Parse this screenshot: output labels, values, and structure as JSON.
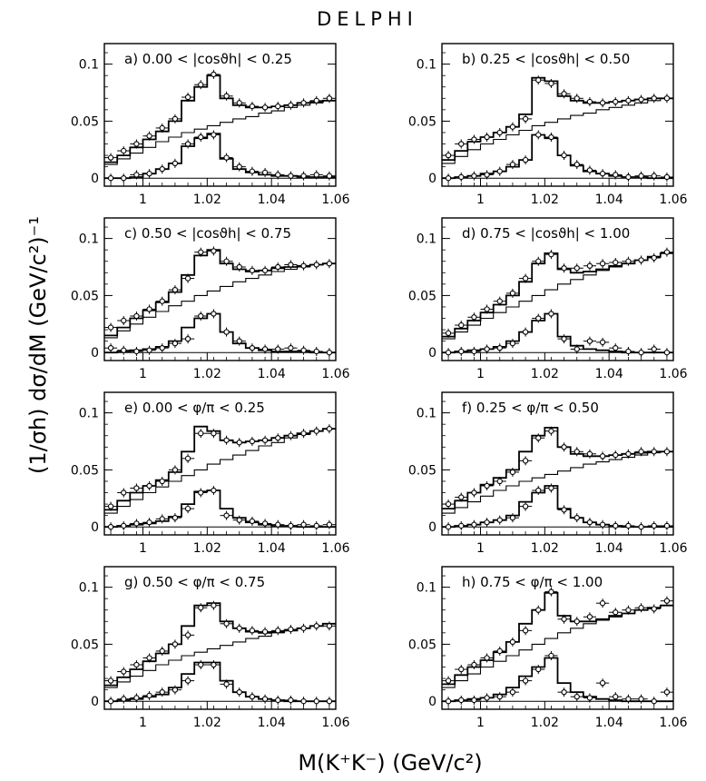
{
  "figure": {
    "title": "DELPHI",
    "ylabel": "(1/σh) dσ/dM  (GeV/c²)⁻¹",
    "xlabel": "M(K⁺K⁻)    (GeV/c²)"
  },
  "chart_data": [
    {
      "type": "line",
      "panel": "a",
      "label": "a) 0.00 < |cosϑh| < 0.25",
      "xlim": [
        0.988,
        1.06
      ],
      "ylim": [
        -0.007,
        0.118
      ],
      "xticks": [
        "1",
        "1.02",
        "1.04",
        "1.06"
      ],
      "yticks": [
        "0",
        "0.05",
        "0.1"
      ],
      "x": [
        0.99,
        0.994,
        0.998,
        1.002,
        1.006,
        1.01,
        1.014,
        1.018,
        1.022,
        1.026,
        1.03,
        1.034,
        1.038,
        1.042,
        1.046,
        1.05,
        1.054,
        1.058
      ],
      "data_total": [
        0.018,
        0.024,
        0.03,
        0.037,
        0.044,
        0.052,
        0.071,
        0.082,
        0.091,
        0.072,
        0.066,
        0.063,
        0.062,
        0.063,
        0.064,
        0.066,
        0.068,
        0.07
      ],
      "model_total": [
        0.014,
        0.02,
        0.027,
        0.034,
        0.041,
        0.05,
        0.068,
        0.08,
        0.09,
        0.07,
        0.064,
        0.062,
        0.062,
        0.063,
        0.064,
        0.066,
        0.067,
        0.068
      ],
      "background": [
        0.012,
        0.017,
        0.022,
        0.027,
        0.032,
        0.036,
        0.04,
        0.043,
        0.046,
        0.049,
        0.052,
        0.054,
        0.057,
        0.059,
        0.062,
        0.064,
        0.066,
        0.068
      ],
      "data_signal": [
        0.0,
        0.0,
        0.003,
        0.004,
        0.008,
        0.013,
        0.03,
        0.036,
        0.038,
        0.018,
        0.01,
        0.006,
        0.005,
        0.003,
        0.002,
        0.002,
        0.003,
        0.002
      ],
      "model_signal": [
        0.0,
        0.0,
        0.001,
        0.004,
        0.008,
        0.013,
        0.028,
        0.035,
        0.039,
        0.017,
        0.008,
        0.005,
        0.003,
        0.002,
        0.002,
        0.001,
        0.001,
        0.001
      ]
    },
    {
      "type": "line",
      "panel": "b",
      "label": "b) 0.25 < |cosϑh| < 0.50",
      "xlim": [
        0.988,
        1.06
      ],
      "ylim": [
        -0.007,
        0.118
      ],
      "xticks": [
        "1",
        "1.02",
        "1.04",
        "1.06"
      ],
      "yticks": [
        "0",
        "0.05",
        "0.1"
      ],
      "x": [
        0.99,
        0.994,
        0.998,
        1.002,
        1.006,
        1.01,
        1.014,
        1.018,
        1.022,
        1.026,
        1.03,
        1.034,
        1.038,
        1.042,
        1.046,
        1.05,
        1.054,
        1.058
      ],
      "data_total": [
        0.02,
        0.03,
        0.034,
        0.036,
        0.04,
        0.045,
        0.052,
        0.086,
        0.083,
        0.074,
        0.07,
        0.067,
        0.066,
        0.067,
        0.068,
        0.069,
        0.07,
        0.07
      ],
      "model_total": [
        0.016,
        0.024,
        0.032,
        0.036,
        0.04,
        0.045,
        0.056,
        0.088,
        0.085,
        0.072,
        0.068,
        0.066,
        0.066,
        0.067,
        0.068,
        0.069,
        0.07,
        0.07
      ],
      "background": [
        0.013,
        0.019,
        0.025,
        0.03,
        0.034,
        0.038,
        0.042,
        0.046,
        0.049,
        0.052,
        0.055,
        0.057,
        0.06,
        0.062,
        0.064,
        0.066,
        0.068,
        0.07
      ],
      "data_signal": [
        0.0,
        0.001,
        0.002,
        0.003,
        0.006,
        0.012,
        0.016,
        0.038,
        0.036,
        0.02,
        0.012,
        0.007,
        0.004,
        0.003,
        0.001,
        0.002,
        0.002,
        0.001
      ],
      "model_signal": [
        0.0,
        0.001,
        0.002,
        0.004,
        0.006,
        0.01,
        0.016,
        0.038,
        0.035,
        0.02,
        0.011,
        0.006,
        0.004,
        0.002,
        0.001,
        0.001,
        0.0,
        0.0
      ]
    },
    {
      "type": "line",
      "panel": "c",
      "label": "c) 0.50 < |cosϑh| < 0.75",
      "xlim": [
        0.988,
        1.06
      ],
      "ylim": [
        -0.007,
        0.118
      ],
      "xticks": [
        "1",
        "1.02",
        "1.04",
        "1.06"
      ],
      "yticks": [
        "0",
        "0.05",
        "0.1"
      ],
      "x": [
        0.99,
        0.994,
        0.998,
        1.002,
        1.006,
        1.01,
        1.014,
        1.018,
        1.022,
        1.026,
        1.03,
        1.034,
        1.038,
        1.042,
        1.046,
        1.05,
        1.054,
        1.058
      ],
      "data_total": [
        0.022,
        0.028,
        0.032,
        0.038,
        0.045,
        0.055,
        0.065,
        0.088,
        0.089,
        0.08,
        0.075,
        0.072,
        0.072,
        0.075,
        0.077,
        0.076,
        0.077,
        0.078
      ],
      "model_total": [
        0.015,
        0.022,
        0.03,
        0.037,
        0.044,
        0.053,
        0.068,
        0.085,
        0.09,
        0.078,
        0.073,
        0.071,
        0.072,
        0.074,
        0.075,
        0.076,
        0.077,
        0.078
      ],
      "background": [
        0.013,
        0.019,
        0.025,
        0.031,
        0.036,
        0.041,
        0.045,
        0.05,
        0.054,
        0.058,
        0.062,
        0.065,
        0.068,
        0.071,
        0.073,
        0.075,
        0.077,
        0.078
      ],
      "data_signal": [
        0.004,
        0.002,
        0.001,
        0.002,
        0.004,
        0.008,
        0.012,
        0.032,
        0.034,
        0.018,
        0.01,
        0.004,
        0.003,
        0.003,
        0.004,
        0.002,
        0.001,
        0.0
      ],
      "model_signal": [
        0.0,
        0.001,
        0.002,
        0.003,
        0.005,
        0.01,
        0.022,
        0.03,
        0.034,
        0.018,
        0.008,
        0.004,
        0.002,
        0.001,
        0.001,
        0.001,
        0.0,
        0.0
      ]
    },
    {
      "type": "line",
      "panel": "d",
      "label": "d) 0.75 < |cosϑh| < 1.00",
      "xlim": [
        0.988,
        1.06
      ],
      "ylim": [
        -0.007,
        0.118
      ],
      "xticks": [
        "1",
        "1.02",
        "1.04",
        "1.06"
      ],
      "yticks": [
        "0",
        "0.05",
        "0.1"
      ],
      "x": [
        0.99,
        0.994,
        0.998,
        1.002,
        1.006,
        1.01,
        1.014,
        1.018,
        1.022,
        1.026,
        1.03,
        1.034,
        1.038,
        1.042,
        1.046,
        1.05,
        1.054,
        1.058
      ],
      "data_total": [
        0.017,
        0.024,
        0.031,
        0.038,
        0.045,
        0.052,
        0.065,
        0.08,
        0.086,
        0.074,
        0.074,
        0.076,
        0.078,
        0.079,
        0.08,
        0.081,
        0.083,
        0.088
      ],
      "model_total": [
        0.014,
        0.021,
        0.028,
        0.035,
        0.042,
        0.05,
        0.062,
        0.078,
        0.087,
        0.073,
        0.07,
        0.071,
        0.073,
        0.076,
        0.078,
        0.081,
        0.084,
        0.087
      ],
      "background": [
        0.012,
        0.018,
        0.024,
        0.03,
        0.035,
        0.04,
        0.045,
        0.05,
        0.055,
        0.06,
        0.064,
        0.068,
        0.072,
        0.075,
        0.078,
        0.081,
        0.084,
        0.087
      ],
      "data_signal": [
        0.0,
        0.001,
        0.001,
        0.003,
        0.004,
        0.008,
        0.018,
        0.03,
        0.034,
        0.012,
        0.003,
        0.01,
        0.009,
        0.004,
        0.001,
        0.0,
        0.003,
        0.0
      ],
      "model_signal": [
        0.0,
        0.001,
        0.002,
        0.003,
        0.005,
        0.01,
        0.018,
        0.028,
        0.034,
        0.014,
        0.006,
        0.003,
        0.002,
        0.001,
        0.0,
        0.0,
        0.0,
        0.0
      ]
    },
    {
      "type": "line",
      "panel": "e",
      "label": "e) 0.00 < φ/π < 0.25",
      "xlim": [
        0.988,
        1.06
      ],
      "ylim": [
        -0.007,
        0.118
      ],
      "xticks": [
        "1",
        "1.02",
        "1.04",
        "1.06"
      ],
      "yticks": [
        "0",
        "0.05",
        "0.1"
      ],
      "x": [
        0.99,
        0.994,
        0.998,
        1.002,
        1.006,
        1.01,
        1.014,
        1.018,
        1.022,
        1.026,
        1.03,
        1.034,
        1.038,
        1.042,
        1.046,
        1.05,
        1.054,
        1.058
      ],
      "data_total": [
        0.018,
        0.03,
        0.034,
        0.036,
        0.04,
        0.05,
        0.06,
        0.082,
        0.082,
        0.076,
        0.074,
        0.075,
        0.076,
        0.078,
        0.08,
        0.082,
        0.084,
        0.086
      ],
      "model_total": [
        0.015,
        0.023,
        0.03,
        0.036,
        0.041,
        0.048,
        0.066,
        0.088,
        0.084,
        0.076,
        0.074,
        0.075,
        0.076,
        0.078,
        0.08,
        0.082,
        0.084,
        0.086
      ],
      "background": [
        0.012,
        0.018,
        0.024,
        0.03,
        0.035,
        0.04,
        0.045,
        0.05,
        0.055,
        0.059,
        0.063,
        0.067,
        0.071,
        0.074,
        0.078,
        0.081,
        0.084,
        0.086
      ],
      "data_signal": [
        0.0,
        0.001,
        0.003,
        0.004,
        0.007,
        0.008,
        0.016,
        0.03,
        0.032,
        0.01,
        0.006,
        0.005,
        0.003,
        0.002,
        0.001,
        0.002,
        0.001,
        0.002
      ],
      "model_signal": [
        0.0,
        0.001,
        0.002,
        0.003,
        0.005,
        0.009,
        0.02,
        0.031,
        0.032,
        0.016,
        0.008,
        0.004,
        0.002,
        0.001,
        0.001,
        0.0,
        0.0,
        0.0
      ]
    },
    {
      "type": "line",
      "panel": "f",
      "label": "f) 0.25 < φ/π < 0.50",
      "xlim": [
        0.988,
        1.06
      ],
      "ylim": [
        -0.007,
        0.118
      ],
      "xticks": [
        "1",
        "1.02",
        "1.04",
        "1.06"
      ],
      "yticks": [
        "0",
        "0.05",
        "0.1"
      ],
      "x": [
        0.99,
        0.994,
        0.998,
        1.002,
        1.006,
        1.01,
        1.014,
        1.018,
        1.022,
        1.026,
        1.03,
        1.034,
        1.038,
        1.042,
        1.046,
        1.05,
        1.054,
        1.058
      ],
      "data_total": [
        0.02,
        0.026,
        0.03,
        0.036,
        0.04,
        0.048,
        0.058,
        0.078,
        0.084,
        0.07,
        0.066,
        0.064,
        0.062,
        0.063,
        0.064,
        0.066,
        0.066,
        0.066
      ],
      "model_total": [
        0.016,
        0.023,
        0.03,
        0.037,
        0.043,
        0.05,
        0.066,
        0.08,
        0.087,
        0.07,
        0.064,
        0.062,
        0.062,
        0.063,
        0.064,
        0.065,
        0.066,
        0.066
      ],
      "background": [
        0.012,
        0.017,
        0.022,
        0.027,
        0.032,
        0.036,
        0.04,
        0.043,
        0.046,
        0.049,
        0.052,
        0.055,
        0.057,
        0.059,
        0.061,
        0.063,
        0.065,
        0.066
      ],
      "data_signal": [
        0.0,
        0.001,
        0.002,
        0.004,
        0.006,
        0.008,
        0.018,
        0.032,
        0.034,
        0.015,
        0.008,
        0.004,
        0.002,
        0.001,
        0.001,
        0.0,
        0.001,
        0.001
      ],
      "model_signal": [
        0.0,
        0.001,
        0.002,
        0.004,
        0.006,
        0.01,
        0.022,
        0.03,
        0.036,
        0.016,
        0.008,
        0.004,
        0.002,
        0.001,
        0.0,
        0.0,
        0.0,
        0.0
      ]
    },
    {
      "type": "line",
      "panel": "g",
      "label": "g) 0.50 < φ/π < 0.75",
      "xlim": [
        0.988,
        1.06
      ],
      "ylim": [
        -0.007,
        0.118
      ],
      "xticks": [
        "1",
        "1.02",
        "1.04",
        "1.06"
      ],
      "yticks": [
        "0",
        "0.05",
        "0.1"
      ],
      "x": [
        0.99,
        0.994,
        0.998,
        1.002,
        1.006,
        1.01,
        1.014,
        1.018,
        1.022,
        1.026,
        1.03,
        1.034,
        1.038,
        1.042,
        1.046,
        1.05,
        1.054,
        1.058
      ],
      "data_total": [
        0.018,
        0.026,
        0.032,
        0.038,
        0.044,
        0.05,
        0.058,
        0.082,
        0.084,
        0.068,
        0.064,
        0.062,
        0.061,
        0.062,
        0.063,
        0.064,
        0.066,
        0.066
      ],
      "model_total": [
        0.014,
        0.021,
        0.028,
        0.035,
        0.042,
        0.05,
        0.066,
        0.084,
        0.086,
        0.07,
        0.064,
        0.061,
        0.06,
        0.061,
        0.062,
        0.064,
        0.066,
        0.068
      ],
      "background": [
        0.012,
        0.017,
        0.022,
        0.027,
        0.032,
        0.036,
        0.04,
        0.043,
        0.046,
        0.049,
        0.052,
        0.055,
        0.057,
        0.06,
        0.062,
        0.064,
        0.066,
        0.068
      ],
      "data_signal": [
        0.0,
        0.002,
        0.003,
        0.005,
        0.008,
        0.01,
        0.018,
        0.032,
        0.032,
        0.015,
        0.008,
        0.004,
        0.002,
        0.001,
        0.001,
        0.0,
        0.0,
        0.0
      ],
      "model_signal": [
        0.0,
        0.001,
        0.002,
        0.004,
        0.006,
        0.012,
        0.024,
        0.034,
        0.034,
        0.018,
        0.008,
        0.004,
        0.002,
        0.001,
        0.0,
        0.0,
        0.0,
        0.0
      ]
    },
    {
      "type": "line",
      "panel": "h",
      "label": "h) 0.75 < φ/π < 1.00",
      "xlim": [
        0.988,
        1.06
      ],
      "ylim": [
        -0.007,
        0.118
      ],
      "xticks": [
        "1",
        "1.02",
        "1.04",
        "1.06"
      ],
      "yticks": [
        "0",
        "0.05",
        "0.1"
      ],
      "x": [
        0.99,
        0.994,
        0.998,
        1.002,
        1.006,
        1.01,
        1.014,
        1.018,
        1.022,
        1.026,
        1.03,
        1.034,
        1.038,
        1.042,
        1.046,
        1.05,
        1.054,
        1.058
      ],
      "data_total": [
        0.018,
        0.028,
        0.032,
        0.038,
        0.044,
        0.052,
        0.062,
        0.08,
        0.096,
        0.072,
        0.07,
        0.074,
        0.086,
        0.078,
        0.08,
        0.082,
        0.081,
        0.088
      ],
      "model_total": [
        0.015,
        0.023,
        0.03,
        0.036,
        0.043,
        0.052,
        0.068,
        0.08,
        0.095,
        0.075,
        0.07,
        0.07,
        0.072,
        0.075,
        0.077,
        0.08,
        0.082,
        0.084
      ],
      "background": [
        0.012,
        0.018,
        0.024,
        0.03,
        0.035,
        0.04,
        0.045,
        0.05,
        0.055,
        0.06,
        0.064,
        0.068,
        0.071,
        0.074,
        0.077,
        0.08,
        0.082,
        0.084
      ],
      "data_signal": [
        0.0,
        0.001,
        0.001,
        0.003,
        0.004,
        0.008,
        0.018,
        0.028,
        0.04,
        0.008,
        0.004,
        0.003,
        0.016,
        0.004,
        0.002,
        0.002,
        0.0,
        0.008
      ],
      "model_signal": [
        0.0,
        0.001,
        0.002,
        0.003,
        0.006,
        0.012,
        0.022,
        0.03,
        0.038,
        0.016,
        0.008,
        0.004,
        0.002,
        0.001,
        0.0,
        0.0,
        0.0,
        0.0
      ]
    }
  ]
}
